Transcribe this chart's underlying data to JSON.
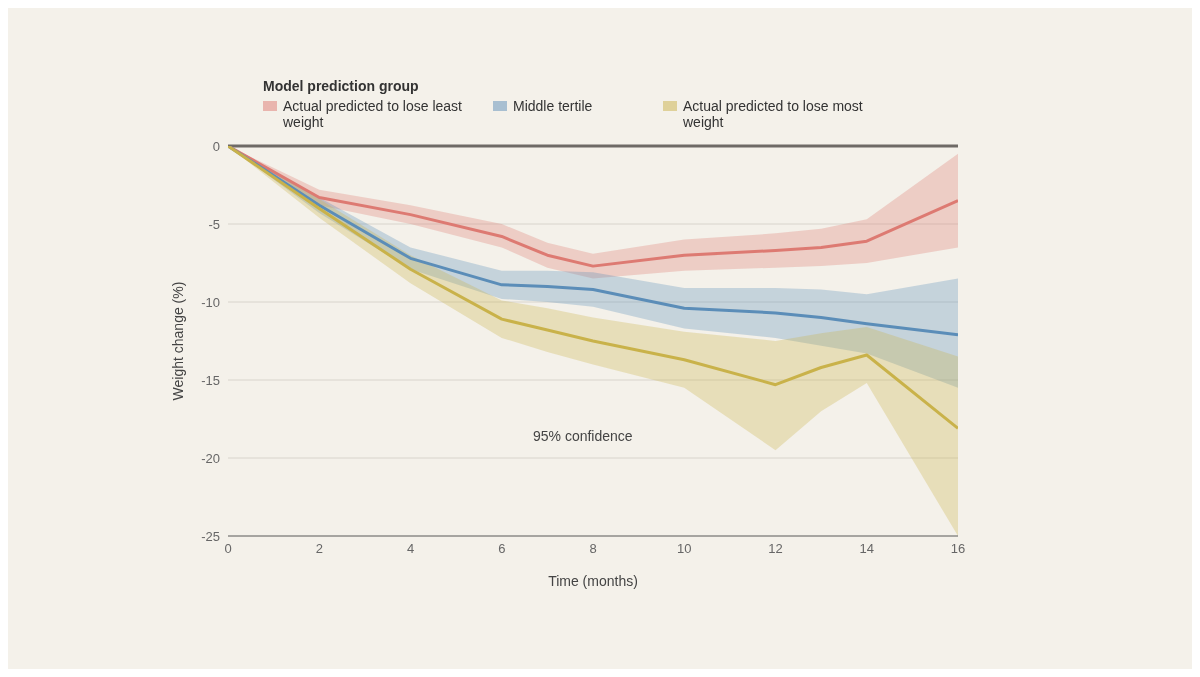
{
  "chart_data": {
    "type": "line",
    "legend_title": "Model prediction group",
    "xlabel": "Time (months)",
    "ylabel": "Weight change (%)",
    "x": [
      0,
      2,
      4,
      6,
      7,
      8,
      10,
      12,
      13,
      14,
      16
    ],
    "series": [
      {
        "name": "Actual predicted to lose least weight",
        "color": "#dd7a72",
        "values": [
          0,
          -3.3,
          -4.4,
          -5.8,
          -7,
          -7.7,
          -7,
          -6.7,
          -6.5,
          -6.1,
          -3.5
        ],
        "lower": [
          0,
          -3.8,
          -5,
          -6.5,
          -7.8,
          -8.5,
          -8,
          -7.8,
          -7.7,
          -7.5,
          -6.5
        ],
        "upper": [
          0,
          -2.8,
          -3.8,
          -5,
          -6.2,
          -6.9,
          -6,
          -5.6,
          -5.3,
          -4.7,
          -0.5
        ]
      },
      {
        "name": "Middle tertile",
        "color": "#5b8db8",
        "values": [
          0,
          -3.8,
          -7.2,
          -8.9,
          -9,
          -9.2,
          -10.4,
          -10.7,
          -11,
          -11.4,
          -12.1
        ],
        "lower": [
          0,
          -4.3,
          -7.9,
          -9.8,
          -10,
          -10.3,
          -11.7,
          -12.3,
          -12.8,
          -13.3,
          -15.5
        ],
        "upper": [
          0,
          -3.3,
          -6.5,
          -8,
          -8,
          -8.1,
          -9.1,
          -9.1,
          -9.2,
          -9.5,
          -8.5
        ]
      },
      {
        "name": "Actual predicted to lose most weight",
        "color": "#c9b24a",
        "values": [
          0,
          -4,
          -7.9,
          -11.1,
          -11.8,
          -12.5,
          -13.7,
          -15.3,
          -14.2,
          -13.4,
          -18.1
        ],
        "lower": [
          0,
          -4.6,
          -8.8,
          -12.3,
          -13.2,
          -14,
          -15.5,
          -19.5,
          -17,
          -15.2,
          -25
        ],
        "upper": [
          0,
          -3.4,
          -7,
          -9.9,
          -10.4,
          -11,
          -11.9,
          -12.5,
          -12,
          -11.6,
          -13.5
        ]
      }
    ],
    "xlim": [
      0,
      16
    ],
    "xticks": [
      0,
      2,
      4,
      6,
      8,
      10,
      12,
      14,
      16
    ],
    "ylim": [
      -25,
      0
    ],
    "yticks": [
      0,
      -5,
      -10,
      -15,
      -20,
      -25
    ],
    "grid": "y",
    "legend": "top left",
    "marker": "none",
    "line_style": "solid",
    "ref_lines": [
      {
        "axis": "y",
        "value": 0,
        "color": "#6e6a66"
      }
    ],
    "annotations": [
      "95% confidence"
    ]
  }
}
